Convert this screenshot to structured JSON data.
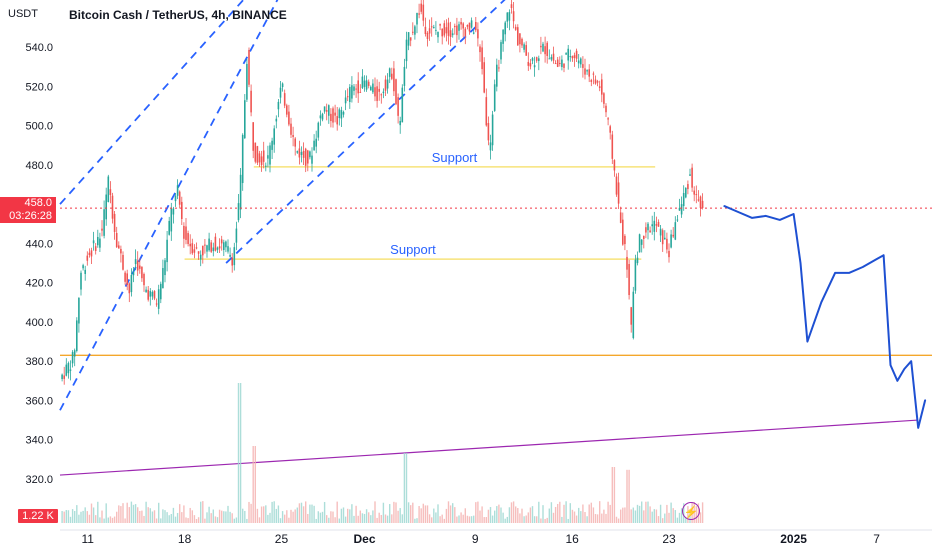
{
  "header": {
    "currency": "USDT",
    "title": "Bitcoin Cash / TetherUS, 4h, BINANCE"
  },
  "price_badge": {
    "price": "458.0",
    "countdown": "03:26:28"
  },
  "volume_badge": "1.22 K",
  "icons": {
    "lightning": "lightning-icon"
  },
  "colors": {
    "up": "#26a69a",
    "down": "#ef5350",
    "channel": "#2962ff",
    "support": "#f7e37a",
    "key_level": "#f4a72b",
    "trendline": "#9c27b0",
    "projection": "#1e50d2",
    "badge": "#f23645"
  },
  "chart_data": {
    "type": "candlestick",
    "title": "Bitcoin Cash / TetherUS, 4h, BINANCE",
    "y_axis": {
      "ticks": [
        300,
        320,
        340,
        360,
        380,
        400,
        420,
        440,
        460,
        480,
        500,
        520,
        540
      ],
      "tick_labels": [
        "300.0",
        "320.0",
        "340.0",
        "360.0",
        "380.0",
        "400.0",
        "420.0",
        "440.0",
        "460.0",
        "480.0",
        "500.0",
        "520.0",
        "540.0"
      ],
      "visible_range": [
        294,
        564
      ]
    },
    "x_axis": {
      "labels": [
        "11",
        "18",
        "25",
        "Dec",
        "9",
        "16",
        "23",
        "2025",
        "7"
      ],
      "bold_labels": [
        "Dec",
        "2025"
      ],
      "label_dates": [
        "2024-11-11",
        "2024-11-18",
        "2024-11-25",
        "2024-12-01",
        "2024-12-09",
        "2024-12-16",
        "2024-12-23",
        "2025-01-01",
        "2025-01-07"
      ],
      "visible_range": [
        "2024-11-09",
        "2025-01-10"
      ]
    },
    "last_price": 458.0,
    "price_path": [
      [
        "2024-11-09",
        371
      ],
      [
        "2024-11-10",
        382
      ],
      [
        "2024-11-10T12:00",
        425
      ],
      [
        "2024-11-11",
        433
      ],
      [
        "2024-11-12",
        445
      ],
      [
        "2024-11-12T12:00",
        472
      ],
      [
        "2024-11-13",
        445
      ],
      [
        "2024-11-14",
        415
      ],
      [
        "2024-11-14T12:00",
        433
      ],
      [
        "2024-11-15",
        418
      ],
      [
        "2024-11-16",
        410
      ],
      [
        "2024-11-16T12:00",
        428
      ],
      [
        "2024-11-17",
        455
      ],
      [
        "2024-11-17T12:00",
        466
      ],
      [
        "2024-11-18",
        443
      ],
      [
        "2024-11-19",
        435
      ],
      [
        "2024-11-20",
        440
      ],
      [
        "2024-11-21",
        438
      ],
      [
        "2024-11-21T12:00",
        432
      ],
      [
        "2024-11-22",
        465
      ],
      [
        "2024-11-22T12:00",
        535
      ],
      [
        "2024-11-23",
        486
      ],
      [
        "2024-11-24",
        482
      ],
      [
        "2024-11-25",
        520
      ],
      [
        "2024-11-25T12:00",
        505
      ],
      [
        "2024-11-26",
        488
      ],
      [
        "2024-11-27",
        482
      ],
      [
        "2024-11-28",
        510
      ],
      [
        "2024-11-29",
        502
      ],
      [
        "2024-11-30",
        518
      ],
      [
        "2024-12-01",
        522
      ],
      [
        "2024-12-02",
        515
      ],
      [
        "2024-12-03",
        528
      ],
      [
        "2024-12-03T12:00",
        498
      ],
      [
        "2024-12-04",
        540
      ],
      [
        "2024-12-05",
        560
      ],
      [
        "2024-12-05T12:00",
        548
      ],
      [
        "2024-12-09",
        550
      ],
      [
        "2024-12-09T12:00",
        530
      ],
      [
        "2024-12-10",
        486
      ],
      [
        "2024-12-10T12:00",
        525
      ],
      [
        "2024-12-11",
        545
      ],
      [
        "2024-12-11T12:00",
        562
      ],
      [
        "2024-12-12",
        545
      ],
      [
        "2024-12-13",
        532
      ],
      [
        "2024-12-14",
        540
      ],
      [
        "2024-12-15",
        530
      ],
      [
        "2024-12-16",
        538
      ],
      [
        "2024-12-17",
        528
      ],
      [
        "2024-12-18",
        520
      ],
      [
        "2024-12-18T12:00",
        505
      ],
      [
        "2024-12-19",
        480
      ],
      [
        "2024-12-19T12:00",
        450
      ],
      [
        "2024-12-20",
        428
      ],
      [
        "2024-12-20T06:00",
        392
      ],
      [
        "2024-12-20T12:00",
        430
      ],
      [
        "2024-12-21",
        445
      ],
      [
        "2024-12-22",
        450
      ],
      [
        "2024-12-23",
        436
      ],
      [
        "2024-12-23T12:00",
        452
      ],
      [
        "2024-12-24",
        462
      ],
      [
        "2024-12-24T12:00",
        475
      ],
      [
        "2024-12-25",
        462
      ],
      [
        "2024-12-25T12:00",
        458
      ]
    ],
    "volume": {
      "badge_value": "1.22 K",
      "spikes": [
        [
          "2024-11-22",
          1.0
        ],
        [
          "2024-11-23",
          0.55
        ],
        [
          "2024-12-04",
          0.5
        ],
        [
          "2024-12-19",
          0.4
        ],
        [
          "2024-12-20",
          0.38
        ]
      ]
    },
    "annotations": {
      "support_labels": [
        {
          "text": "Support",
          "price": 479,
          "from": "2024-11-23",
          "to": "2024-12-22"
        },
        {
          "text": "Support",
          "price": 432,
          "from": "2024-11-18",
          "to": "2024-12-21"
        }
      ],
      "key_level": {
        "price": 383,
        "from": "2024-11-09",
        "to": "2025-01-10"
      },
      "channel_lines": [
        {
          "start": [
            "2024-11-09",
            355
          ],
          "end": [
            "2024-11-25",
            568
          ]
        },
        {
          "start": [
            "2024-11-09",
            460
          ],
          "end": [
            "2024-11-23",
            570
          ]
        },
        {
          "start": [
            "2024-11-21",
            430
          ],
          "end": [
            "2024-12-12",
            570
          ]
        }
      ],
      "trendline": {
        "start": [
          "2024-11-09",
          322
        ],
        "end": [
          "2025-01-10",
          350
        ]
      },
      "projection_path": [
        [
          "2024-12-27",
          459
        ],
        [
          "2024-12-28",
          456
        ],
        [
          "2024-12-29",
          453
        ],
        [
          "2024-12-30",
          454
        ],
        [
          "2024-12-31",
          452
        ],
        [
          "2025-01-01",
          455
        ],
        [
          "2025-01-01T12:00",
          430
        ],
        [
          "2025-01-02",
          390
        ],
        [
          "2025-01-03",
          410
        ],
        [
          "2025-01-04",
          425
        ],
        [
          "2025-01-05",
          425
        ],
        [
          "2025-01-06",
          428
        ],
        [
          "2025-01-07",
          432
        ],
        [
          "2025-01-07T12:00",
          434
        ],
        [
          "2025-01-08",
          378
        ],
        [
          "2025-01-08T12:00",
          370
        ],
        [
          "2025-01-09",
          376
        ],
        [
          "2025-01-09T12:00",
          380
        ],
        [
          "2025-01-10",
          346
        ],
        [
          "2025-01-10T12:00",
          360
        ]
      ]
    }
  }
}
